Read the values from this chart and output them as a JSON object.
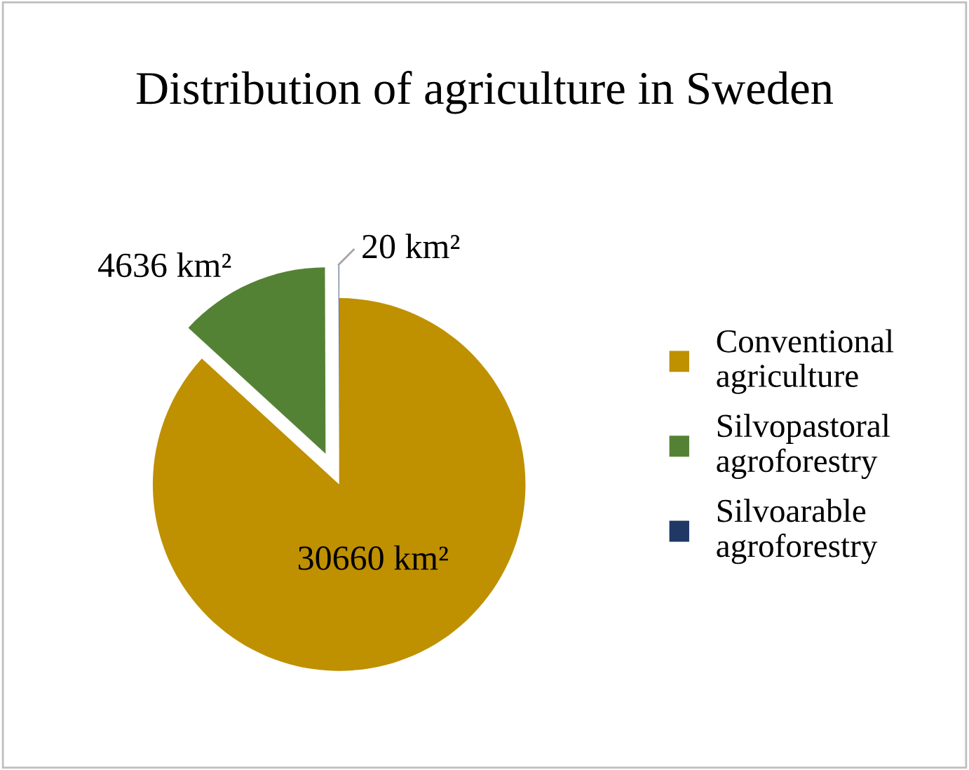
{
  "chart_data": {
    "type": "pie",
    "title": "Distribution of agriculture in Sweden",
    "categories": [
      "Conventional agriculture",
      "Silvopastoral agroforestry",
      "Silvoarable agroforestry"
    ],
    "values": [
      30660,
      4636,
      20
    ],
    "colors": [
      "#bf9000",
      "#548235",
      "#1f3864"
    ],
    "value_labels": [
      "30660 km²",
      "4636 km²",
      "20 km²"
    ],
    "legend": "right"
  }
}
